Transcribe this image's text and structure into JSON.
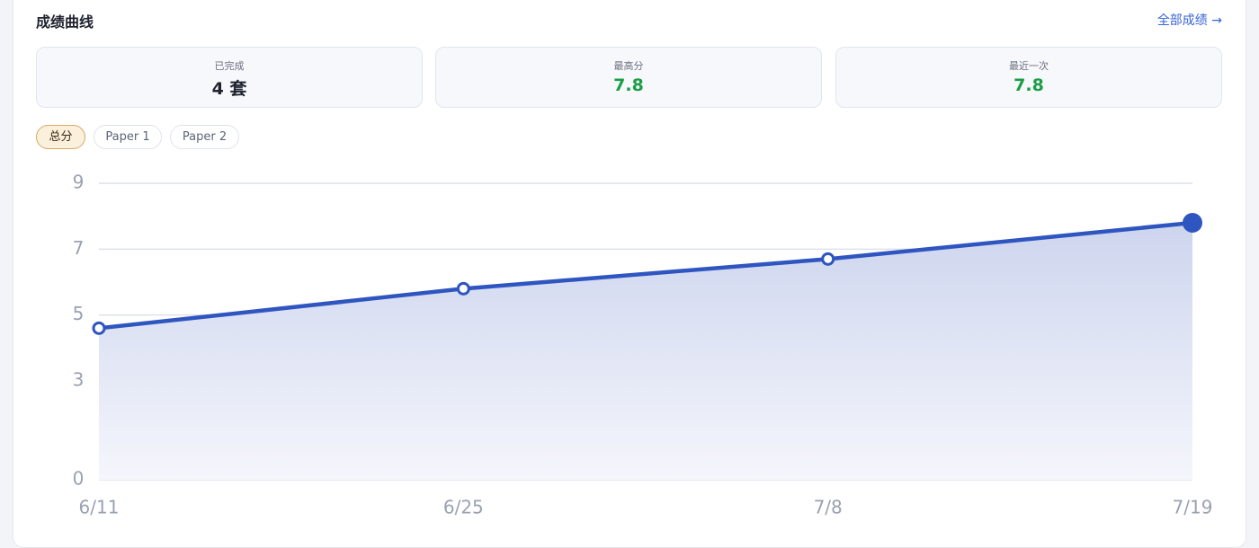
{
  "header": {
    "title": "成绩曲线",
    "link": "全部成绩 →"
  },
  "stats": [
    {
      "label": "已完成",
      "value": "4 套"
    },
    {
      "label": "最高分",
      "value": "7.8"
    },
    {
      "label": "最近一次",
      "value": "7.8"
    }
  ],
  "tabs": [
    "总分",
    "Paper 1",
    "Paper 2"
  ],
  "chart_data": {
    "type": "area-line",
    "categories": [
      "6/11",
      "6/25",
      "7/8",
      "7/19"
    ],
    "values": [
      4.6,
      5.8,
      6.7,
      7.8
    ],
    "color": "#2f55c0",
    "ylim": [
      0,
      9
    ],
    "yticks": [
      0,
      3,
      5,
      7,
      9
    ],
    "grid": true
  }
}
